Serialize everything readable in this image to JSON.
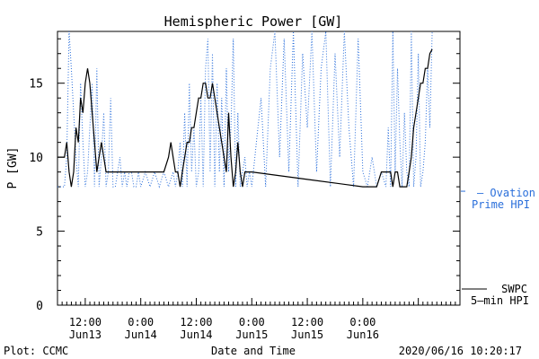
{
  "chart_data": {
    "type": "line",
    "title": "Hemispheric Power [GW]",
    "xlabel": "Date and Time",
    "ylabel": "P [GW]",
    "ylim": [
      0,
      18.5
    ],
    "xlim": [
      6,
      93
    ],
    "y_ticks": [
      0,
      5,
      10,
      15
    ],
    "x_ticks": [
      {
        "x": 12,
        "time": "12:00",
        "date": "Jun13"
      },
      {
        "x": 24,
        "time": "0:00",
        "date": "Jun14"
      },
      {
        "x": 36,
        "time": "12:00",
        "date": "Jun14"
      },
      {
        "x": 48,
        "time": "0:00",
        "date": "Jun15"
      },
      {
        "x": 60,
        "time": "12:00",
        "date": "Jun15"
      },
      {
        "x": 72,
        "time": "0:00",
        "date": "Jun16"
      }
    ],
    "grid": false,
    "legend_placement": "right",
    "series": [
      {
        "name": "Ovation Prime HPI",
        "legend_lines": [
          "– Ovation",
          "Prime HPI"
        ],
        "style": "dotted",
        "color": "#2a6fdb",
        "x": [
          6,
          7.5,
          8,
          8.5,
          9,
          10,
          10.5,
          11,
          11.5,
          12,
          12.5,
          13,
          13.5,
          14,
          14.5,
          15,
          15.5,
          16,
          16.5,
          17,
          17.5,
          18,
          18.5,
          19,
          19.5,
          20,
          20.5,
          21,
          21.5,
          22,
          22.5,
          23,
          23.5,
          24,
          25,
          26,
          27,
          28,
          29,
          30,
          31,
          31.5,
          32,
          32.5,
          33,
          33.5,
          34,
          34.5,
          35,
          35.5,
          36,
          36.5,
          37,
          37.5,
          38,
          38.5,
          39,
          39.5,
          40,
          40.5,
          41,
          41.5,
          42,
          42.5,
          43,
          43.5,
          44,
          44.5,
          45,
          45.5,
          46,
          46.5,
          47,
          47.5,
          48,
          49,
          50,
          51,
          52,
          53,
          54,
          55,
          56,
          57,
          58,
          59,
          60,
          61,
          62,
          63,
          64,
          65,
          66,
          67,
          68,
          69,
          70,
          71,
          72,
          73,
          74,
          75,
          76,
          77,
          77.5,
          78,
          78.5,
          79,
          79.5,
          80,
          80.5,
          81,
          81.5,
          82,
          82.5,
          83,
          83.5,
          84,
          84.5,
          85,
          85.5,
          86,
          86.5,
          87
        ],
        "y": [
          8,
          8,
          10,
          18.5,
          16,
          10,
          8,
          15,
          11,
          8,
          9,
          12,
          15,
          8,
          16,
          8,
          10,
          13,
          8,
          9,
          14,
          8,
          8,
          9,
          10,
          8,
          9,
          8,
          9,
          9,
          8,
          8,
          9,
          8,
          9,
          8,
          9,
          8,
          9,
          8,
          9,
          8,
          9,
          11,
          8,
          13,
          8,
          15,
          9,
          12,
          8,
          9,
          14,
          8,
          16,
          18,
          9,
          17,
          8,
          15,
          9,
          14,
          8,
          16,
          9,
          12,
          18,
          8,
          13,
          8,
          9,
          10,
          8,
          9,
          8,
          11,
          14,
          8,
          16,
          18.5,
          10,
          18,
          9,
          18.5,
          8,
          17,
          12,
          18.5,
          9,
          16,
          18.5,
          8,
          17,
          10,
          18.5,
          12,
          8,
          18,
          9,
          8,
          10,
          8,
          9,
          8,
          12,
          8,
          18.5,
          9,
          16,
          11,
          8,
          13,
          9,
          8,
          18.5,
          8,
          10,
          17,
          8,
          9,
          11,
          16,
          12,
          18.5
        ]
      },
      {
        "name": "SWPC 5-min HPI",
        "legend_lines": [
          "SWPC",
          "5–min HPI"
        ],
        "style": "solid",
        "color": "#000000",
        "x": [
          6,
          7,
          7.5,
          8,
          8.5,
          9,
          9.5,
          10,
          10.5,
          11,
          11.5,
          12,
          12.5,
          13,
          13.5,
          14,
          14.5,
          15,
          15.5,
          16,
          16.5,
          17,
          17.5,
          18,
          18.5,
          19,
          19.5,
          20,
          20.5,
          21,
          22,
          23,
          24,
          25,
          26,
          27,
          28,
          29,
          30,
          30.5,
          31,
          31.5,
          32,
          32.5,
          33,
          33.5,
          34,
          34.5,
          35,
          35.5,
          36,
          36.5,
          37,
          37.5,
          38,
          38.5,
          39,
          39.5,
          40,
          40.5,
          41,
          41.5,
          42,
          42.5,
          43,
          43.5,
          44,
          44.5,
          45,
          45.5,
          46,
          46.5,
          47,
          47.5,
          48,
          60,
          72,
          75,
          76,
          77,
          77.5,
          78,
          78.5,
          79,
          79.5,
          80,
          80.5,
          81,
          81.5,
          82,
          82.5,
          83,
          83.5,
          84,
          84.5,
          85,
          85.5,
          86,
          86.5,
          87
        ],
        "y": [
          10,
          10,
          10,
          11,
          9,
          8,
          9,
          12,
          11,
          14,
          13,
          15,
          16,
          15,
          13,
          11,
          9,
          10,
          11,
          10,
          9,
          9,
          9,
          9,
          9,
          9,
          9,
          9,
          9,
          9,
          9,
          9,
          9,
          9,
          9,
          9,
          9,
          9,
          10,
          11,
          10,
          9,
          9,
          8,
          9,
          10,
          11,
          11,
          12,
          12,
          13,
          14,
          14,
          15,
          15,
          14,
          14,
          15,
          14,
          13,
          12,
          11,
          10,
          9,
          13,
          10,
          8,
          9,
          11,
          9,
          8,
          9,
          9,
          9,
          9,
          8.5,
          8,
          8,
          9,
          9,
          9,
          9,
          8,
          9,
          9,
          8,
          8,
          8,
          8,
          9,
          10,
          12,
          13,
          14,
          15,
          15,
          16,
          16,
          17,
          17.3
        ]
      }
    ]
  },
  "footer": {
    "left": "Plot: CCMC",
    "right": "2020/06/16 10:20:17"
  }
}
